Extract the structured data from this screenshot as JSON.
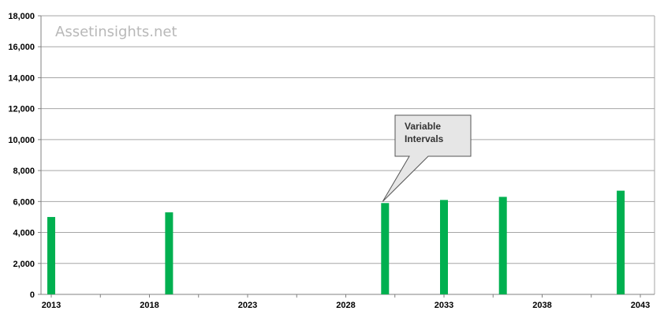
{
  "chart_data": {
    "type": "bar",
    "x": [
      2013,
      2019,
      2030,
      2033,
      2036,
      2042
    ],
    "values": [
      5000,
      5300,
      5900,
      6100,
      6300,
      6700
    ],
    "xlim": [
      2013,
      2043
    ],
    "ylim": [
      0,
      18000
    ],
    "xticks": [
      "2013",
      "2018",
      "2023",
      "2028",
      "2033",
      "2038",
      "2043"
    ],
    "yticks": [
      "0",
      "2,000",
      "4,000",
      "6,000",
      "8,000",
      "10,000",
      "12,000",
      "14,000",
      "16,000",
      "18,000"
    ],
    "grid": true,
    "bar_color": "#00b050",
    "watermark": "Assetinsights.net",
    "annotation": {
      "lines": [
        "Variable",
        "Intervals"
      ],
      "target_x": 2030,
      "target_y": 5900
    }
  }
}
